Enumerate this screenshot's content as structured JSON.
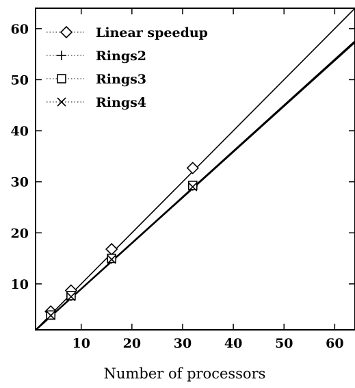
{
  "chart_data": {
    "type": "line",
    "title": "",
    "xlabel": "Number of processors",
    "ylabel": "",
    "xlim": [
      1,
      64
    ],
    "ylim": [
      1,
      64
    ],
    "xticks": [
      10,
      20,
      30,
      40,
      50,
      60
    ],
    "yticks": [
      10,
      20,
      30,
      40,
      50,
      60
    ],
    "grid": false,
    "legend_position": "top-left",
    "series": [
      {
        "name": "Linear speedup",
        "marker": "diamond",
        "color": "#000000",
        "points": [
          [
            4,
            4.6
          ],
          [
            8,
            8.7
          ],
          [
            16,
            16.8
          ],
          [
            32,
            32.7
          ]
        ],
        "line": [
          [
            1,
            1
          ],
          [
            64,
            64
          ]
        ]
      },
      {
        "name": "Rings2",
        "marker": "plus",
        "color": "#000000",
        "points": [
          [
            4,
            3.9
          ],
          [
            8,
            7.6
          ],
          [
            16,
            14.9
          ],
          [
            32,
            29.2
          ]
        ],
        "line": [
          [
            1,
            0.9
          ],
          [
            64,
            57.5
          ]
        ]
      },
      {
        "name": "Rings3",
        "marker": "square",
        "color": "#000000",
        "points": [
          [
            4,
            3.9
          ],
          [
            8,
            7.7
          ],
          [
            16,
            15.0
          ],
          [
            32,
            29.3
          ]
        ],
        "line": [
          [
            1,
            1.0
          ],
          [
            64,
            57.6
          ]
        ]
      },
      {
        "name": "Rings4",
        "marker": "cross",
        "color": "#000000",
        "points": [
          [
            4,
            3.8
          ],
          [
            8,
            7.5
          ],
          [
            16,
            14.8
          ],
          [
            32,
            29.0
          ]
        ],
        "line": [
          [
            1,
            0.9
          ],
          [
            64,
            57.3
          ]
        ]
      }
    ]
  }
}
